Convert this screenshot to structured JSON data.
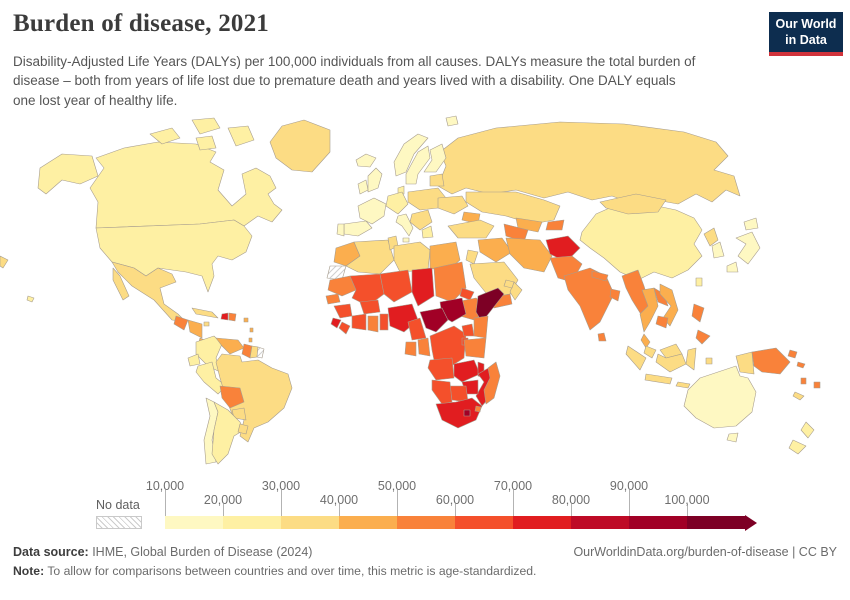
{
  "header": {
    "title": "Burden of disease, 2021",
    "subtitle": "Disability-Adjusted Life Years (DALYs) per 100,000 individuals from all causes. DALYs measure the total burden of disease – both from years of life lost due to premature death and years lived with a disability. One DALY equals one lost year of healthy life.",
    "logo": {
      "line1": "Our World",
      "line2": "in Data",
      "bg": "#0d2d4f",
      "accent": "#d1333b"
    }
  },
  "legend": {
    "no_data_label": "No data",
    "ticks": [
      {
        "label": "10,000",
        "row": "top"
      },
      {
        "label": "20,000",
        "row": "bottom"
      },
      {
        "label": "30,000",
        "row": "top"
      },
      {
        "label": "40,000",
        "row": "bottom"
      },
      {
        "label": "50,000",
        "row": "top"
      },
      {
        "label": "60,000",
        "row": "bottom"
      },
      {
        "label": "70,000",
        "row": "top"
      },
      {
        "label": "80,000",
        "row": "bottom"
      },
      {
        "label": "90,000",
        "row": "top"
      },
      {
        "label": "100,000",
        "row": "bottom"
      }
    ]
  },
  "chart_data": {
    "type": "choropleth_map",
    "title": "Burden of disease, 2021",
    "metric": "Disability-Adjusted Life Years (DALYs) per 100,000 individuals, all causes",
    "year": "2021",
    "scale_range": [
      10000,
      100000
    ],
    "bins": [
      {
        "range": "10,000–20,000",
        "color": "#FEF8C2"
      },
      {
        "range": "20,000–30,000",
        "color": "#FEF0A3"
      },
      {
        "range": "30,000–40,000",
        "color": "#FCDC84"
      },
      {
        "range": "40,000–50,000",
        "color": "#FBAE4E"
      },
      {
        "range": "50,000–60,000",
        "color": "#F9823A"
      },
      {
        "range": "60,000–70,000",
        "color": "#F4502B"
      },
      {
        "range": "70,000–80,000",
        "color": "#E11D20"
      },
      {
        "range": "80,000–90,000",
        "color": "#BE0A26"
      },
      {
        "range": "90,000–100,000",
        "color": "#A10026"
      },
      {
        "range": "100,000+",
        "color": "#7D0025"
      }
    ],
    "no_data_color": "hatch",
    "regions": [
      {
        "id": "russia",
        "bin": "30,000–40,000"
      },
      {
        "id": "canada",
        "bin": "20,000–30,000"
      },
      {
        "id": "united-states",
        "bin": "20,000–30,000"
      },
      {
        "id": "greenland",
        "bin": "30,000–40,000"
      },
      {
        "id": "mexico",
        "bin": "30,000–40,000"
      },
      {
        "id": "guatemala",
        "bin": "50,000–60,000"
      },
      {
        "id": "honduras-nicaragua",
        "bin": "40,000–50,000"
      },
      {
        "id": "costa-rica-panama",
        "bin": "40,000–50,000"
      },
      {
        "id": "cuba",
        "bin": "30,000–40,000"
      },
      {
        "id": "jamaica",
        "bin": "30,000–40,000"
      },
      {
        "id": "haiti",
        "bin": "70,000–80,000"
      },
      {
        "id": "dominican-republic",
        "bin": "50,000–60,000"
      },
      {
        "id": "lesser-antilles",
        "bin": "40,000–50,000"
      },
      {
        "id": "trinidad",
        "bin": "50,000–60,000"
      },
      {
        "id": "colombia",
        "bin": "20,000–30,000"
      },
      {
        "id": "venezuela",
        "bin": "40,000–50,000"
      },
      {
        "id": "guyana",
        "bin": "50,000–60,000"
      },
      {
        "id": "suriname",
        "bin": "30,000–40,000"
      },
      {
        "id": "french-guiana",
        "bin": "No data"
      },
      {
        "id": "ecuador",
        "bin": "20,000–30,000"
      },
      {
        "id": "peru",
        "bin": "20,000–30,000"
      },
      {
        "id": "brazil",
        "bin": "30,000–40,000"
      },
      {
        "id": "bolivia",
        "bin": "50,000–60,000"
      },
      {
        "id": "paraguay",
        "bin": "30,000–40,000"
      },
      {
        "id": "chile",
        "bin": "10,000–20,000"
      },
      {
        "id": "argentina",
        "bin": "20,000–30,000"
      },
      {
        "id": "uruguay",
        "bin": "30,000–40,000"
      },
      {
        "id": "iceland",
        "bin": "10,000–20,000"
      },
      {
        "id": "united-kingdom",
        "bin": "10,000–20,000"
      },
      {
        "id": "ireland",
        "bin": "10,000–20,000"
      },
      {
        "id": "norway",
        "bin": "10,000–20,000"
      },
      {
        "id": "sweden",
        "bin": "10,000–20,000"
      },
      {
        "id": "finland",
        "bin": "10,000–20,000"
      },
      {
        "id": "denmark",
        "bin": "20,000–30,000"
      },
      {
        "id": "baltics",
        "bin": "30,000–40,000"
      },
      {
        "id": "france",
        "bin": "10,000–20,000"
      },
      {
        "id": "spain",
        "bin": "10,000–20,000"
      },
      {
        "id": "portugal",
        "bin": "10,000–20,000"
      },
      {
        "id": "central-europe",
        "bin": "20,000–30,000"
      },
      {
        "id": "italy",
        "bin": "10,000–20,000"
      },
      {
        "id": "poland-belarus",
        "bin": "30,000–40,000"
      },
      {
        "id": "ukraine",
        "bin": "30,000–40,000"
      },
      {
        "id": "balkans",
        "bin": "30,000–40,000"
      },
      {
        "id": "greece",
        "bin": "20,000–30,000"
      },
      {
        "id": "kazakhstan",
        "bin": "30,000–40,000"
      },
      {
        "id": "uzbekistan",
        "bin": "40,000–50,000"
      },
      {
        "id": "turkmenistan",
        "bin": "50,000–60,000"
      },
      {
        "id": "kyrgyzstan-tajikistan",
        "bin": "50,000–60,000"
      },
      {
        "id": "caucasus",
        "bin": "40,000–50,000"
      },
      {
        "id": "turkey",
        "bin": "30,000–40,000"
      },
      {
        "id": "syria-iraq",
        "bin": "40,000–50,000"
      },
      {
        "id": "jordan-israel",
        "bin": "30,000–40,000"
      },
      {
        "id": "saudi-arabia",
        "bin": "30,000–40,000"
      },
      {
        "id": "yemen",
        "bin": "50,000–60,000"
      },
      {
        "id": "oman",
        "bin": "30,000–40,000"
      },
      {
        "id": "uae-qatar",
        "bin": "30,000–40,000"
      },
      {
        "id": "iran",
        "bin": "40,000–50,000"
      },
      {
        "id": "afghanistan",
        "bin": "70,000–80,000"
      },
      {
        "id": "pakistan",
        "bin": "50,000–60,000"
      },
      {
        "id": "india",
        "bin": "50,000–60,000"
      },
      {
        "id": "sri-lanka",
        "bin": "50,000–60,000"
      },
      {
        "id": "nepal",
        "bin": "50,000–60,000"
      },
      {
        "id": "bangladesh",
        "bin": "50,000–60,000"
      },
      {
        "id": "china",
        "bin": "20,000–30,000"
      },
      {
        "id": "mongolia",
        "bin": "30,000–40,000"
      },
      {
        "id": "north-korea",
        "bin": "30,000–40,000"
      },
      {
        "id": "south-korea",
        "bin": "10,000–20,000"
      },
      {
        "id": "japan",
        "bin": "10,000–20,000"
      },
      {
        "id": "taiwan",
        "bin": "20,000–30,000"
      },
      {
        "id": "myanmar",
        "bin": "50,000–60,000"
      },
      {
        "id": "thailand",
        "bin": "40,000–50,000"
      },
      {
        "id": "laos",
        "bin": "50,000–60,000"
      },
      {
        "id": "vietnam",
        "bin": "40,000–50,000"
      },
      {
        "id": "cambodia",
        "bin": "50,000–60,000"
      },
      {
        "id": "malaysia",
        "bin": "30,000–40,000"
      },
      {
        "id": "philippines",
        "bin": "50,000–60,000"
      },
      {
        "id": "indonesia",
        "bin": "30,000–40,000"
      },
      {
        "id": "papua-new-guinea",
        "bin": "50,000–60,000"
      },
      {
        "id": "solomon-islands",
        "bin": "50,000–60,000"
      },
      {
        "id": "vanuatu",
        "bin": "50,000–60,000"
      },
      {
        "id": "fiji",
        "bin": "50,000–60,000"
      },
      {
        "id": "new-caledonia",
        "bin": "30,000–40,000"
      },
      {
        "id": "australia",
        "bin": "10,000–20,000"
      },
      {
        "id": "new-zealand",
        "bin": "20,000–30,000"
      },
      {
        "id": "morocco",
        "bin": "40,000–50,000"
      },
      {
        "id": "western-sahara",
        "bin": "No data"
      },
      {
        "id": "algeria",
        "bin": "30,000–40,000"
      },
      {
        "id": "tunisia",
        "bin": "30,000–40,000"
      },
      {
        "id": "libya",
        "bin": "30,000–40,000"
      },
      {
        "id": "egypt",
        "bin": "40,000–50,000"
      },
      {
        "id": "mauritania",
        "bin": "50,000–60,000"
      },
      {
        "id": "senegal",
        "bin": "50,000–60,000"
      },
      {
        "id": "guinea",
        "bin": "60,000–70,000"
      },
      {
        "id": "sierra-leone",
        "bin": "70,000–80,000"
      },
      {
        "id": "liberia",
        "bin": "60,000–70,000"
      },
      {
        "id": "mali",
        "bin": "60,000–70,000"
      },
      {
        "id": "burkina-faso",
        "bin": "60,000–70,000"
      },
      {
        "id": "cote-divoire",
        "bin": "60,000–70,000"
      },
      {
        "id": "ghana",
        "bin": "50,000–60,000"
      },
      {
        "id": "togo-benin",
        "bin": "60,000–70,000"
      },
      {
        "id": "niger",
        "bin": "60,000–70,000"
      },
      {
        "id": "chad",
        "bin": "70,000–80,000"
      },
      {
        "id": "nigeria",
        "bin": "70,000–80,000"
      },
      {
        "id": "sudan",
        "bin": "50,000–60,000"
      },
      {
        "id": "eritrea",
        "bin": "60,000–70,000"
      },
      {
        "id": "djibouti",
        "bin": "50,000–60,000"
      },
      {
        "id": "ethiopia",
        "bin": "50,000–60,000"
      },
      {
        "id": "somalia",
        "bin": "100,000+"
      },
      {
        "id": "south-sudan",
        "bin": "90,000–100,000"
      },
      {
        "id": "central-african-republic",
        "bin": "90,000–100,000"
      },
      {
        "id": "cameroon",
        "bin": "60,000–70,000"
      },
      {
        "id": "gabon",
        "bin": "50,000–60,000"
      },
      {
        "id": "congo",
        "bin": "50,000–60,000"
      },
      {
        "id": "dr-congo",
        "bin": "60,000–70,000"
      },
      {
        "id": "uganda",
        "bin": "60,000–70,000"
      },
      {
        "id": "kenya",
        "bin": "50,000–60,000"
      },
      {
        "id": "rwanda-burundi",
        "bin": "60,000–70,000"
      },
      {
        "id": "tanzania",
        "bin": "50,000–60,000"
      },
      {
        "id": "angola",
        "bin": "60,000–70,000"
      },
      {
        "id": "zambia",
        "bin": "70,000–80,000"
      },
      {
        "id": "malawi",
        "bin": "70,000–80,000"
      },
      {
        "id": "mozambique",
        "bin": "70,000–80,000"
      },
      {
        "id": "zimbabwe",
        "bin": "70,000–80,000"
      },
      {
        "id": "botswana",
        "bin": "60,000–70,000"
      },
      {
        "id": "namibia",
        "bin": "60,000–70,000"
      },
      {
        "id": "south-africa",
        "bin": "70,000–80,000"
      },
      {
        "id": "lesotho",
        "bin": "90,000–100,000"
      },
      {
        "id": "eswatini",
        "bin": "50,000–60,000"
      },
      {
        "id": "madagascar",
        "bin": "50,000–60,000"
      }
    ]
  },
  "footer": {
    "data_source_label": "Data source:",
    "data_source_value": " IHME, Global Burden of Disease (2024)",
    "link": "OurWorldinData.org/burden-of-disease | CC BY",
    "note_label": "Note:",
    "note_value": " To allow for comparisons between countries and over time, this metric is age-standardized."
  }
}
